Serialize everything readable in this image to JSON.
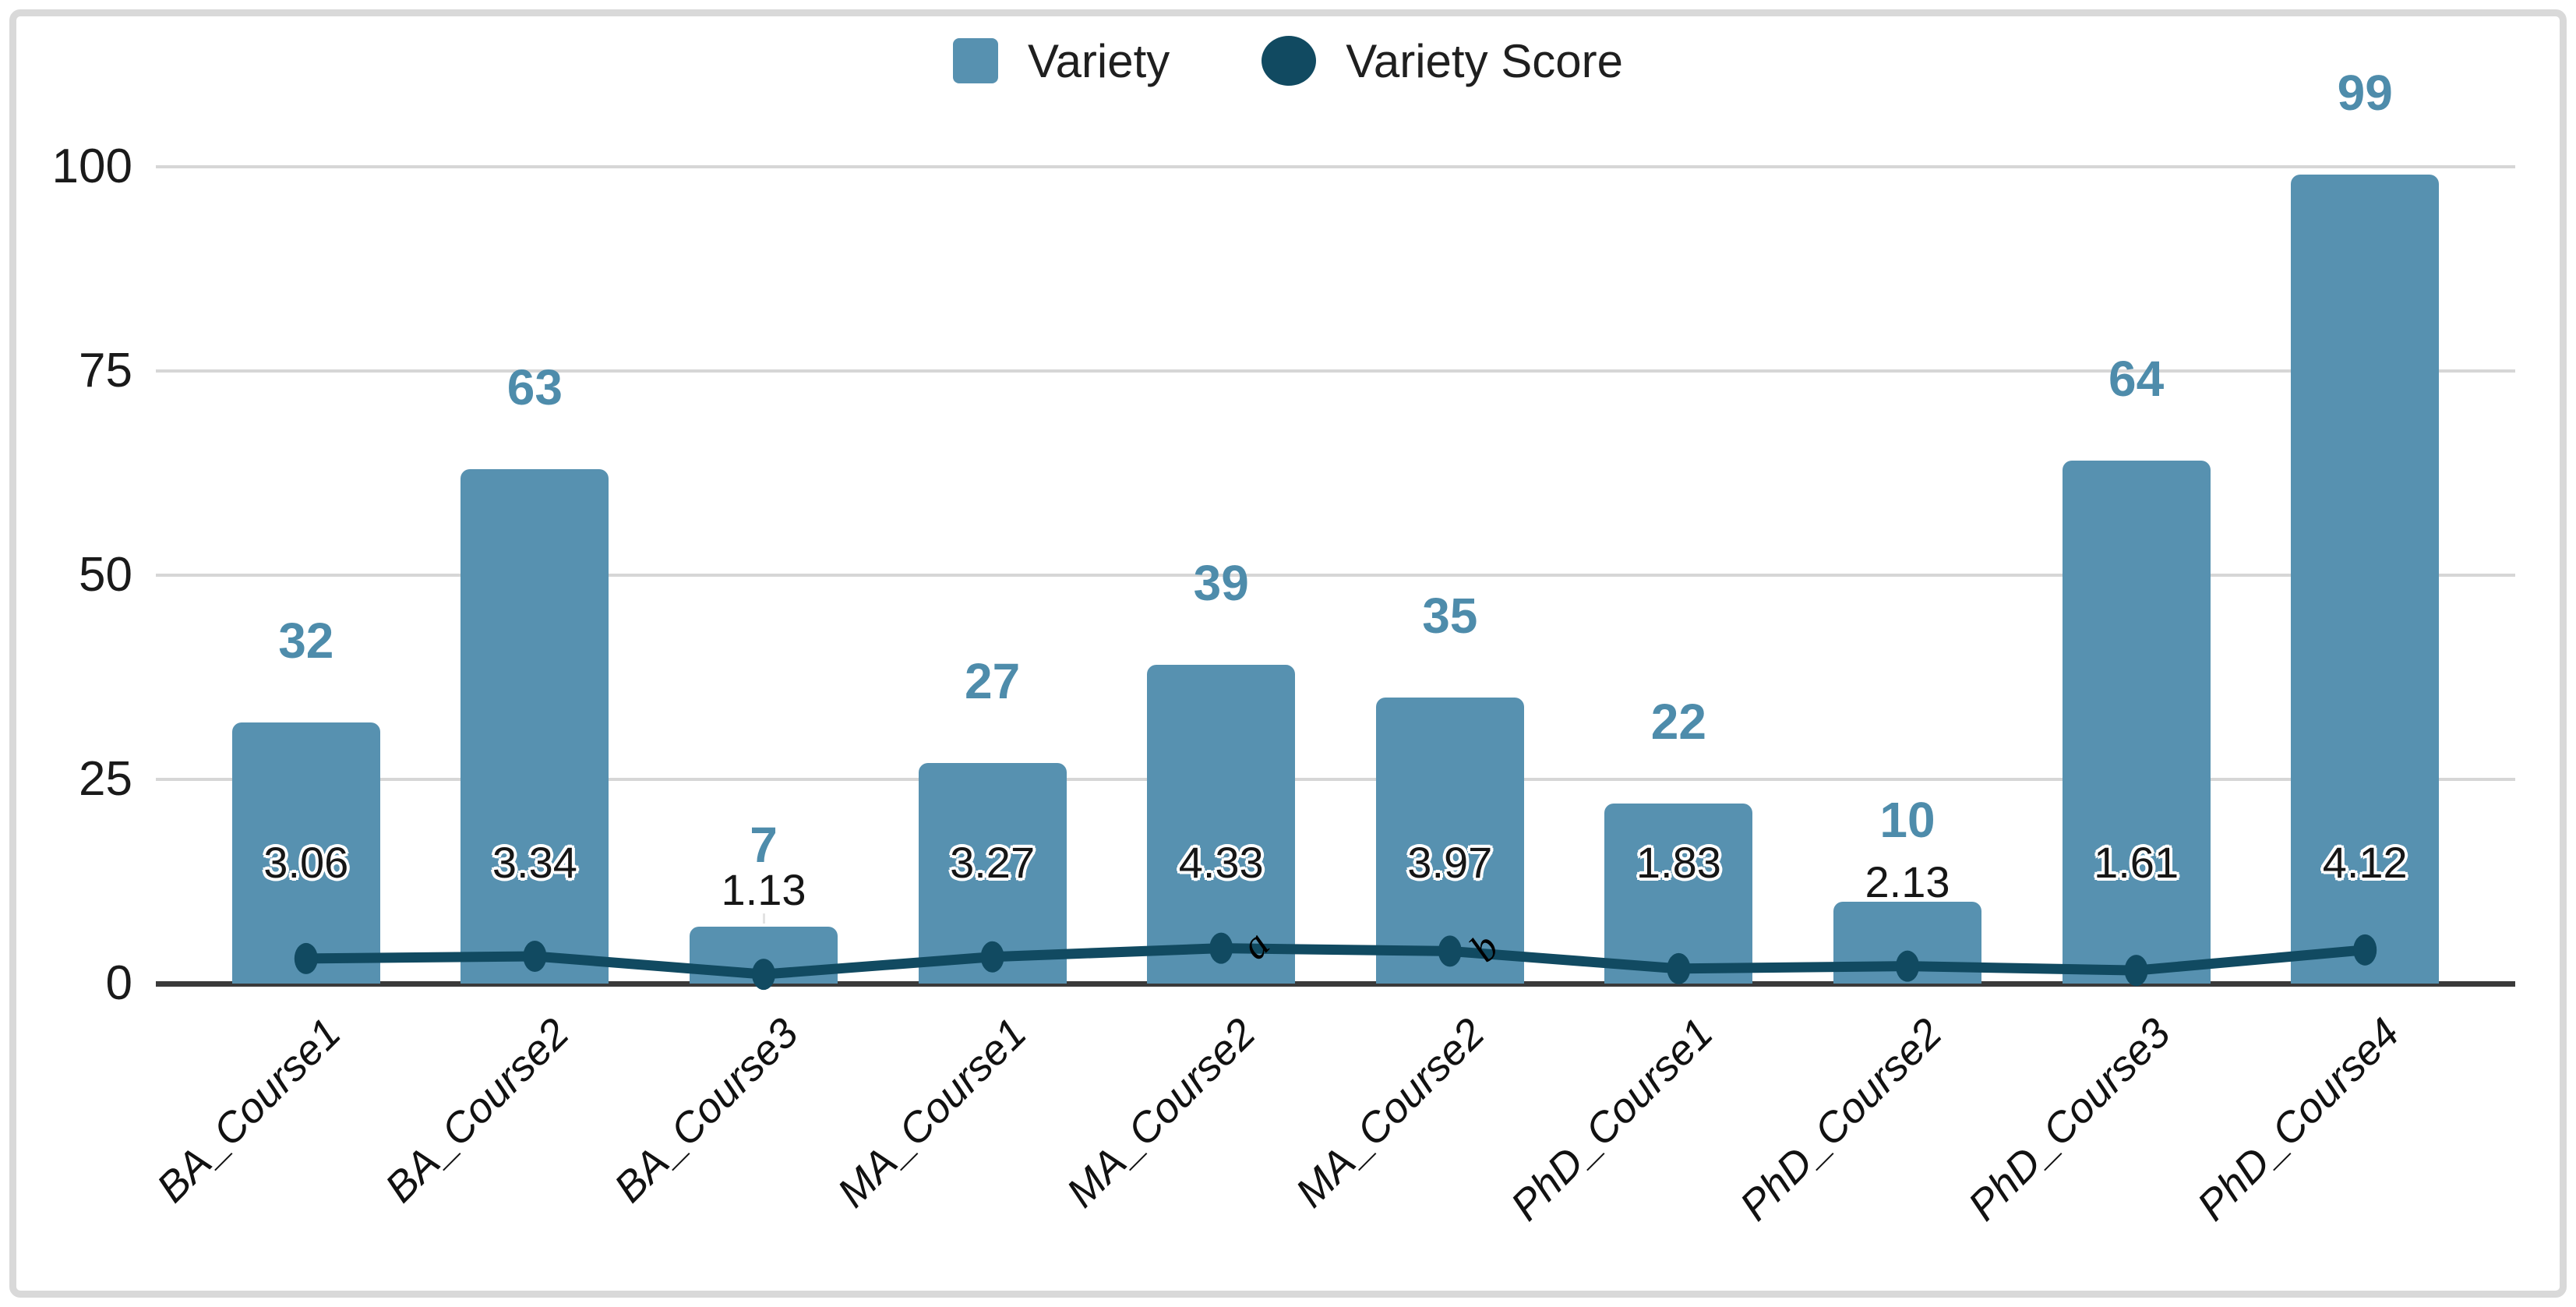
{
  "legend": {
    "items": [
      {
        "label": "Variety",
        "marker": "square-icon",
        "color": "#5791b0"
      },
      {
        "label": "Variety Score",
        "marker": "circle-icon",
        "color": "#134e66"
      }
    ]
  },
  "chart_data": {
    "type": "combo",
    "categories": [
      "BA_Course1",
      "BA_Course2",
      "BA_Course3",
      "MA_Course1",
      "MA_Course2",
      "MA_Course2",
      "PhD_Course1",
      "PhD_Course2",
      "PhD_Course3",
      "PhD_Course4"
    ],
    "series": [
      {
        "name": "Variety",
        "type": "bar",
        "values": [
          32,
          63,
          7,
          27,
          39,
          35,
          22,
          10,
          64,
          99
        ],
        "color": "#5791b0",
        "data_label_color": "#4e8cab"
      },
      {
        "name": "Variety Score",
        "type": "line",
        "values": [
          3.06,
          3.34,
          1.13,
          3.27,
          4.33,
          3.97,
          1.83,
          2.13,
          1.61,
          4.12
        ],
        "color": "#114a61",
        "data_label_color": "#161616"
      }
    ],
    "title": "",
    "xlabel": "",
    "ylabel": "",
    "ylim": [
      0,
      100
    ],
    "yticks": [
      0,
      25,
      50,
      75,
      100
    ],
    "grid": true,
    "legend_position": "top",
    "annotations": [
      {
        "text": "a",
        "category_index": 4,
        "series": "Variety Score"
      },
      {
        "text": "b",
        "category_index": 5,
        "series": "Variety Score"
      }
    ]
  }
}
